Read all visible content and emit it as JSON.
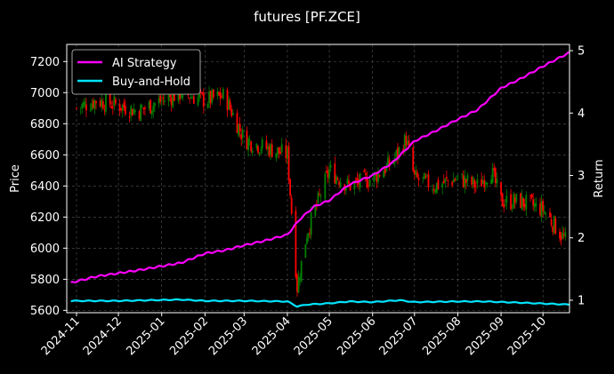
{
  "chart_data": {
    "type": "line",
    "title": "futures [PF.ZCE]",
    "xlabel": "",
    "ylabel": "Price",
    "ylabel_right": "Return",
    "grid": true,
    "legend_position": "top-left",
    "xlim": [
      "2024-10-25",
      "2025-10-20"
    ],
    "ylim": [
      5585,
      7310
    ],
    "ylim_right": [
      0.8,
      5.1
    ],
    "x_ticks": [
      "2024-11",
      "2024-12",
      "2025-01",
      "2025-02",
      "2025-03",
      "2025-04",
      "2025-05",
      "2025-06",
      "2025-07",
      "2025-08",
      "2025-09",
      "2025-10"
    ],
    "y_ticks_left": [
      5600,
      5800,
      6000,
      6200,
      6400,
      6600,
      6800,
      7000,
      7200
    ],
    "y_ticks_right": [
      1,
      2,
      3,
      4,
      5
    ],
    "colors": {
      "background": "#000000",
      "up": "#008000",
      "down": "#ff0000",
      "ai_strategy": "#ff00ff",
      "buy_and_hold": "#00e5ff",
      "grid": "#555555"
    },
    "price_series": {
      "name": "PF.ZCE",
      "kind": "candlestick",
      "x": [
        "2024-11-01",
        "2024-11-15",
        "2024-12-01",
        "2024-12-15",
        "2025-01-01",
        "2025-01-15",
        "2025-02-01",
        "2025-02-15",
        "2025-03-01",
        "2025-03-15",
        "2025-04-01",
        "2025-04-08",
        "2025-04-15",
        "2025-05-01",
        "2025-05-15",
        "2025-06-01",
        "2025-06-15",
        "2025-06-25",
        "2025-07-01",
        "2025-07-15",
        "2025-08-01",
        "2025-08-15",
        "2025-08-25",
        "2025-09-01",
        "2025-09-15",
        "2025-10-01",
        "2025-10-17"
      ],
      "close": [
        6900,
        6950,
        6920,
        6880,
        6950,
        7000,
        6950,
        6980,
        6700,
        6650,
        6600,
        5750,
        6100,
        6500,
        6400,
        6450,
        6550,
        6700,
        6450,
        6400,
        6450,
        6400,
        6500,
        6300,
        6300,
        6250,
        6050
      ]
    },
    "series": [
      {
        "name": "AI Strategy",
        "x": [
          "2024-10-28",
          "2024-11-15",
          "2024-12-15",
          "2025-01-15",
          "2025-02-01",
          "2025-02-15",
          "2025-03-01",
          "2025-03-15",
          "2025-04-01",
          "2025-04-10",
          "2025-04-20",
          "2025-05-01",
          "2025-05-15",
          "2025-06-01",
          "2025-06-15",
          "2025-07-01",
          "2025-07-15",
          "2025-08-01",
          "2025-08-15",
          "2025-09-01",
          "2025-09-15",
          "2025-10-01",
          "2025-10-20"
        ],
        "values": [
          1.28,
          1.38,
          1.48,
          1.6,
          1.75,
          1.8,
          1.88,
          1.95,
          2.05,
          2.3,
          2.5,
          2.6,
          2.85,
          3.0,
          3.2,
          3.55,
          3.7,
          3.9,
          4.05,
          4.4,
          4.55,
          4.75,
          4.97
        ]
      },
      {
        "name": "Buy-and-Hold",
        "x": [
          "2024-10-28",
          "2024-12-01",
          "2025-01-15",
          "2025-02-01",
          "2025-03-01",
          "2025-04-01",
          "2025-04-08",
          "2025-04-15",
          "2025-05-01",
          "2025-05-15",
          "2025-06-01",
          "2025-06-20",
          "2025-07-01",
          "2025-08-01",
          "2025-08-20",
          "2025-09-15",
          "2025-10-20"
        ],
        "values": [
          0.99,
          0.99,
          1.01,
          0.99,
          0.99,
          0.98,
          0.9,
          0.93,
          0.95,
          0.98,
          0.97,
          1.0,
          0.97,
          0.98,
          0.98,
          0.96,
          0.93
        ]
      }
    ]
  }
}
